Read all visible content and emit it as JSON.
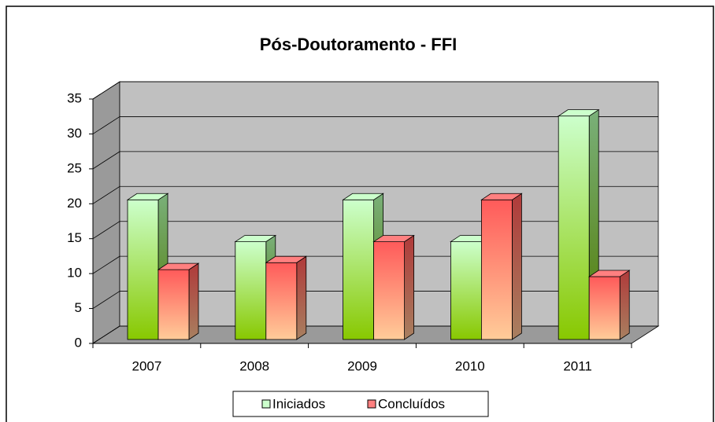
{
  "chart_data": {
    "type": "bar",
    "title": "Pós-Doutoramento - FFI",
    "categories": [
      "2007",
      "2008",
      "2009",
      "2010",
      "2011"
    ],
    "series": [
      {
        "name": "Iniciados",
        "color": "#ccffcc",
        "values": [
          20,
          14,
          20,
          14,
          32
        ]
      },
      {
        "name": "Concluídos",
        "color": "#ff8080",
        "values": [
          10,
          11,
          14,
          20,
          9
        ]
      }
    ],
    "ylim": [
      0,
      35
    ],
    "yticks": [
      0,
      5,
      10,
      15,
      20,
      25,
      30,
      35
    ],
    "grid": true,
    "legend": "bottom"
  }
}
